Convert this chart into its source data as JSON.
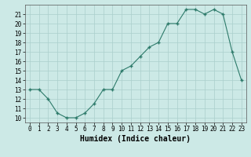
{
  "x": [
    0,
    1,
    2,
    3,
    4,
    5,
    6,
    7,
    8,
    9,
    10,
    11,
    12,
    13,
    14,
    15,
    16,
    17,
    18,
    19,
    20,
    21,
    22,
    23
  ],
  "y": [
    13,
    13,
    12,
    10.5,
    10,
    10,
    10.5,
    11.5,
    13,
    13,
    15,
    15.5,
    16.5,
    17.5,
    18,
    20,
    20,
    21.5,
    21.5,
    21,
    21.5,
    21,
    17,
    14
  ],
  "xlabel": "Humidex (Indice chaleur)",
  "ylim_min": 9.5,
  "ylim_max": 22.0,
  "xlim_min": -0.5,
  "xlim_max": 23.5,
  "yticks": [
    10,
    11,
    12,
    13,
    14,
    15,
    16,
    17,
    18,
    19,
    20,
    21
  ],
  "xticks": [
    0,
    1,
    2,
    3,
    4,
    5,
    6,
    7,
    8,
    9,
    10,
    11,
    12,
    13,
    14,
    15,
    16,
    17,
    18,
    19,
    20,
    21,
    22,
    23
  ],
  "line_color": "#2d7a6a",
  "bg_color": "#cce9e6",
  "grid_color": "#aacfcc"
}
